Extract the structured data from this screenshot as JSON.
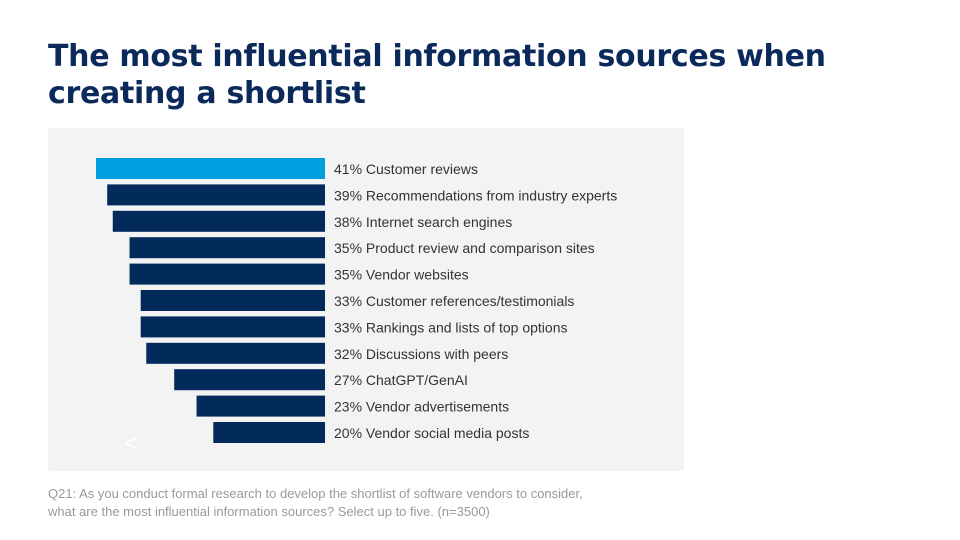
{
  "title": "The most influential information sources when creating a shortlist",
  "footnote": "Q21: As you conduct formal research to develop the shortlist of software vendors to consider, what are the most influential information sources? Select up to five. (n=3500)",
  "nav": {
    "prev_icon": "chevron-left-icon",
    "prev_glyph": "<"
  },
  "colors": {
    "highlight": "#009ddf",
    "bar": "#022a5b",
    "text": "#333333"
  },
  "chart_data": {
    "type": "bar",
    "orientation": "horizontal",
    "categories": [
      "Customer reviews",
      "Recommendations from industry experts",
      "Internet search engines",
      "Product review and comparison sites",
      "Vendor websites",
      "Customer references/testimonials",
      "Rankings and lists of top options",
      "Discussions with peers",
      "ChatGPT/GenAI",
      "Vendor advertisements",
      "Vendor social media posts"
    ],
    "values": [
      41,
      39,
      38,
      35,
      35,
      33,
      33,
      32,
      27,
      23,
      20
    ],
    "unit": "%",
    "highlighted_index": 0,
    "grid": false
  }
}
